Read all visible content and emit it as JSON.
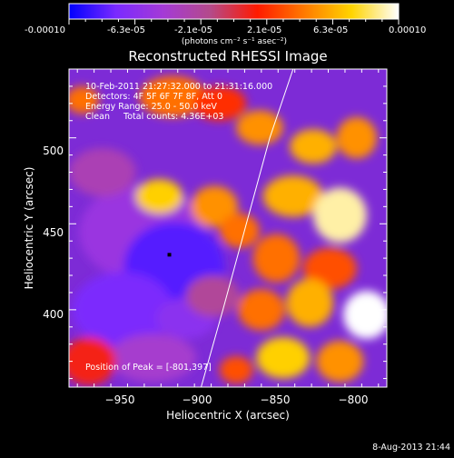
{
  "colorbar": {
    "tick_labels": [
      "-0.00010",
      "-6.3e-05",
      "-2.1e-05",
      "2.1e-05",
      "6.3e-05",
      "0.00010"
    ],
    "units_label": "(photons cm⁻² s⁻¹ asec⁻²)",
    "range": [
      -0.0001,
      0.0001
    ],
    "stops": [
      "#0000ff",
      "#7a2aff",
      "#a43ad6",
      "#b44a8a",
      "#ff1a00",
      "#ff7a00",
      "#ffd400",
      "#ffffff"
    ]
  },
  "info": {
    "time": "10-Feb-2011 21:27:32.000 to 21:31:16.000",
    "detectors": "Detectors: 4F 5F 6F 7F 8F, Att 0",
    "energy": "Energy Range: 25.0 - 50.0 keV",
    "clean": "Clean     Total counts: 4.36E+03",
    "peak": "Position of Peak = [-801,397]"
  },
  "footer": {
    "date": "8-Aug-2013 21:44"
  },
  "chart_data": {
    "type": "heatmap",
    "title": "Reconstructed RHESSI Image",
    "xlabel": "Heliocentric X (arcsec)",
    "ylabel": "Heliocentric Y (arcsec)",
    "xlim": [
      -980,
      -790
    ],
    "ylim": [
      355,
      540
    ],
    "x_ticks": [
      -950,
      -900,
      -850,
      -800
    ],
    "y_ticks": [
      400,
      450,
      500
    ],
    "x_tick_labels": [
      "−950",
      "−900",
      "−850",
      "−800"
    ],
    "y_tick_labels": [
      "400",
      "450",
      "500"
    ],
    "marker": {
      "x": -920,
      "y": 432
    },
    "limb": {
      "x": [
        -901,
        -888,
        -874,
        -860,
        -846,
        -835
      ],
      "y": [
        355,
        400,
        450,
        500,
        540,
        569
      ]
    },
    "blobs": [
      {
        "x": -936,
        "y": 445,
        "rx": 38,
        "ry": 28,
        "level": -5e-05
      },
      {
        "x": -917,
        "y": 425,
        "rx": 30,
        "ry": 26,
        "level": -8e-05
      },
      {
        "x": -948,
        "y": 400,
        "rx": 30,
        "ry": 22,
        "level": -7e-05
      },
      {
        "x": -910,
        "y": 395,
        "rx": 18,
        "ry": 12,
        "level": -6e-05
      },
      {
        "x": -930,
        "y": 372,
        "rx": 26,
        "ry": 14,
        "level": -4e-05
      },
      {
        "x": -960,
        "y": 480,
        "rx": 20,
        "ry": 14,
        "level": -3e-05
      },
      {
        "x": -894,
        "y": 408,
        "rx": 16,
        "ry": 12,
        "level": -2e-05
      },
      {
        "x": -968,
        "y": 370,
        "rx": 16,
        "ry": 14,
        "level": 1e-05
      },
      {
        "x": -926,
        "y": 466,
        "rx": 14,
        "ry": 10,
        "level": 7e-05
      },
      {
        "x": -918,
        "y": 524,
        "rx": 20,
        "ry": 12,
        "level": 4e-05
      },
      {
        "x": -972,
        "y": 522,
        "rx": 10,
        "ry": 8,
        "level": 4e-05
      },
      {
        "x": -890,
        "y": 520,
        "rx": 16,
        "ry": 10,
        "level": 2e-05
      },
      {
        "x": -866,
        "y": 506,
        "rx": 14,
        "ry": 10,
        "level": 5e-05
      },
      {
        "x": -893,
        "y": 460,
        "rx": 14,
        "ry": 12,
        "level": 5e-05
      },
      {
        "x": -878,
        "y": 446,
        "rx": 12,
        "ry": 10,
        "level": 4e-05
      },
      {
        "x": -834,
        "y": 495,
        "rx": 14,
        "ry": 10,
        "level": 6e-05
      },
      {
        "x": -808,
        "y": 500,
        "rx": 12,
        "ry": 12,
        "level": 5e-05
      },
      {
        "x": -846,
        "y": 466,
        "rx": 18,
        "ry": 12,
        "level": 6e-05
      },
      {
        "x": -818,
        "y": 455,
        "rx": 16,
        "ry": 16,
        "level": 9e-05
      },
      {
        "x": -856,
        "y": 430,
        "rx": 14,
        "ry": 14,
        "level": 4e-05
      },
      {
        "x": -824,
        "y": 424,
        "rx": 16,
        "ry": 12,
        "level": 3e-05
      },
      {
        "x": -865,
        "y": 400,
        "rx": 14,
        "ry": 12,
        "level": 4e-05
      },
      {
        "x": -836,
        "y": 404,
        "rx": 14,
        "ry": 14,
        "level": 6e-05
      },
      {
        "x": -802,
        "y": 397,
        "rx": 14,
        "ry": 14,
        "level": 0.0001
      },
      {
        "x": -852,
        "y": 372,
        "rx": 16,
        "ry": 12,
        "level": 7e-05
      },
      {
        "x": -818,
        "y": 370,
        "rx": 14,
        "ry": 12,
        "level": 5e-05
      },
      {
        "x": -880,
        "y": 365,
        "rx": 10,
        "ry": 8,
        "level": 3e-05
      }
    ]
  }
}
